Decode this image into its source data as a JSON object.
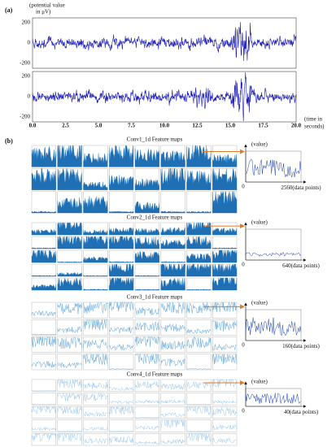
{
  "panel_a": {
    "label": "(a)",
    "y_label_lines": [
      "(potential value",
      "in μV)"
    ],
    "yticks_top": [
      "200",
      "0",
      "-200"
    ],
    "yticks_bottom": [
      "200",
      "0",
      "-200"
    ],
    "xticks": [
      "0.0",
      "2.5",
      "5.0",
      "7.5",
      "10.0",
      "12.5",
      "15.0",
      "17.5",
      "20.0"
    ],
    "x_label_lines": [
      "(time in",
      "seconds)"
    ]
  },
  "panel_b": {
    "label": "(b)",
    "sections": [
      {
        "title": "Conv1_1d Feature maps",
        "value_label": "(value)",
        "origin": "0",
        "length": "2560",
        "unit": "(data points)"
      },
      {
        "title": "Conv2_1d Feature maps",
        "value_label": "(value)",
        "origin": "0",
        "length": "640",
        "unit": "(data points)"
      },
      {
        "title": "Conv3_1d Feature maps",
        "value_label": "(value)",
        "origin": "0",
        "length": "160",
        "unit": "(data points)"
      },
      {
        "title": "Conv4_1d Feature maps",
        "value_label": "(value)",
        "origin": "0",
        "length": "40",
        "unit": "(data points)"
      }
    ]
  }
}
